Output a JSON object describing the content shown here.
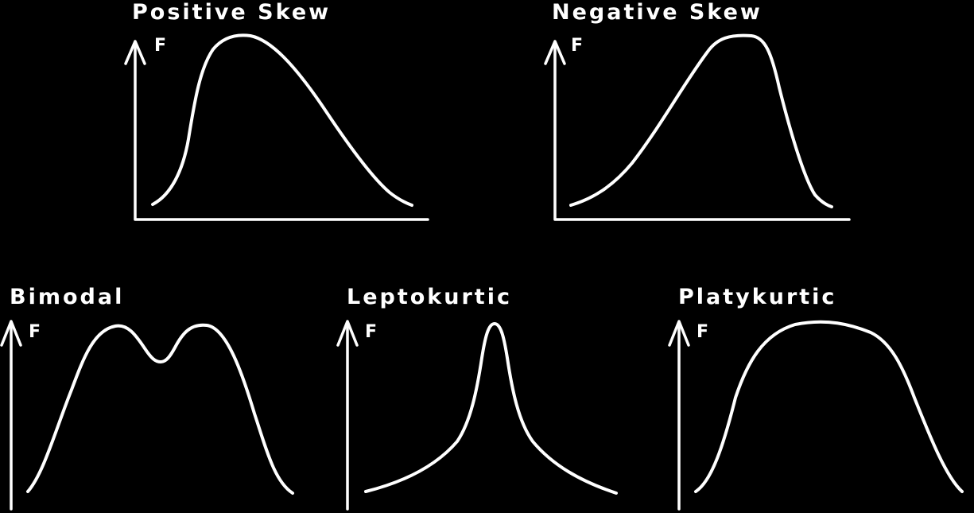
{
  "colors": {
    "background": "#000000",
    "ink": "#ffffff"
  },
  "panels": [
    {
      "id": "positive-skew",
      "title": "Positive  Skew",
      "axis_label": "F"
    },
    {
      "id": "negative-skew",
      "title": "Negative  Skew",
      "axis_label": "F"
    },
    {
      "id": "bimodal",
      "title": "Bimodal",
      "axis_label": "F"
    },
    {
      "id": "leptokurtic",
      "title": "Leptokurtic",
      "axis_label": "F"
    },
    {
      "id": "platykurtic",
      "title": "Platykurtic",
      "axis_label": "F"
    }
  ]
}
